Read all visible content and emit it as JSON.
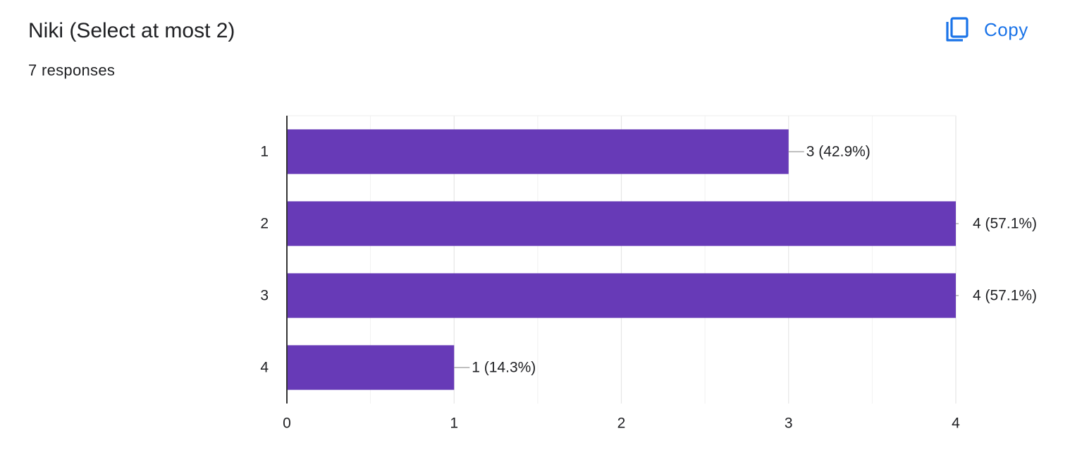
{
  "question": {
    "title": "Niki (Select at most 2)",
    "responses_text": "7 responses"
  },
  "toolbar": {
    "copy_label": "Copy",
    "copy_icon": "copy-icon"
  },
  "colors": {
    "bar": "#673ab7",
    "link": "#1a73e8",
    "gridline": "#e6e6e6",
    "axis": "#333333",
    "text": "#202124"
  },
  "chart_data": {
    "type": "bar",
    "orientation": "horizontal",
    "categories": [
      "1",
      "2",
      "3",
      "4"
    ],
    "values": [
      3,
      4,
      4,
      1
    ],
    "data_labels": [
      "3 (42.9%)",
      "4 (57.1%)",
      "4 (57.1%)",
      "1 (14.3%)"
    ],
    "x_ticks": [
      "0",
      "1",
      "2",
      "3",
      "4"
    ],
    "xlim": [
      0,
      4
    ],
    "grid": true,
    "legend": "none"
  }
}
